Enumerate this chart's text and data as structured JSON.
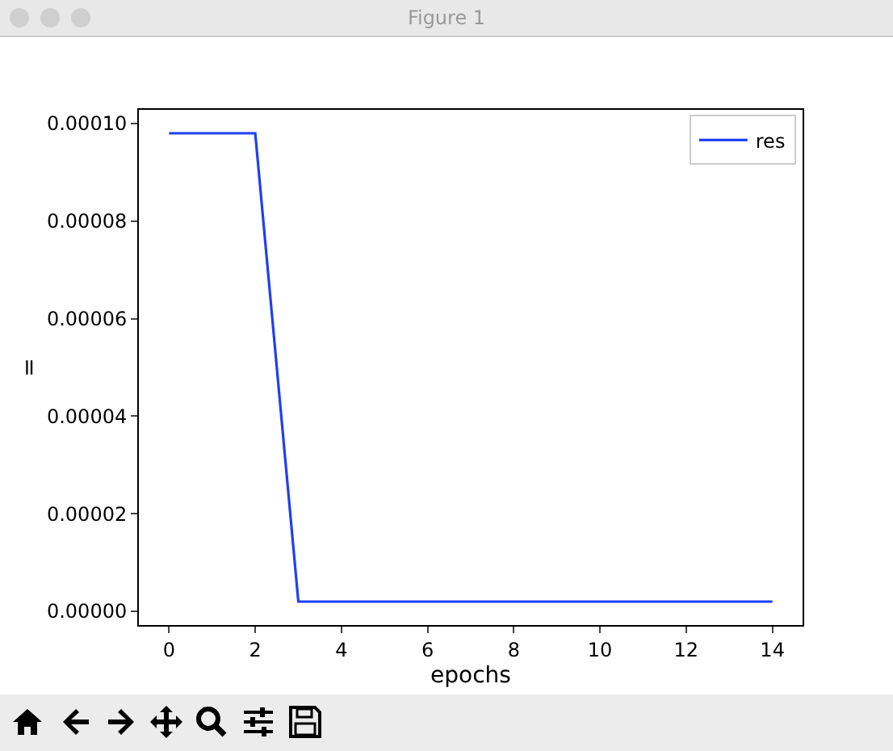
{
  "chart_data": {
    "type": "line",
    "annotations": [
      "Figure 1"
    ],
    "xlabel": "epochs",
    "ylabel": "=",
    "x": [
      0,
      1,
      2,
      3,
      4,
      5,
      6,
      7,
      8,
      9,
      10,
      11,
      12,
      13,
      14
    ],
    "series": [
      {
        "name": "res",
        "color": "#1f3ff5",
        "values": [
          9.8e-05,
          9.8e-05,
          9.8e-05,
          2e-06,
          2e-06,
          2e-06,
          2e-06,
          2e-06,
          2e-06,
          2e-06,
          2e-06,
          2e-06,
          2e-06,
          2e-06,
          2e-06
        ]
      }
    ],
    "xlim": [
      -0.7,
      14.7
    ],
    "xticks": [
      0,
      2,
      4,
      6,
      8,
      10,
      12,
      14
    ],
    "ylim": [
      -2.8e-06,
      0.0001028
    ],
    "yticks": [
      {
        "value": 0,
        "label": "0.00000"
      },
      {
        "value": 2e-05,
        "label": "0.00002"
      },
      {
        "value": 4e-05,
        "label": "0.00004"
      },
      {
        "value": 6e-05,
        "label": "0.00006"
      },
      {
        "value": 8e-05,
        "label": "0.00008"
      },
      {
        "value": 0.0001,
        "label": "0.00010"
      }
    ],
    "legend": "top right",
    "grid": false,
    "marker": "none",
    "line_style": "solid"
  }
}
